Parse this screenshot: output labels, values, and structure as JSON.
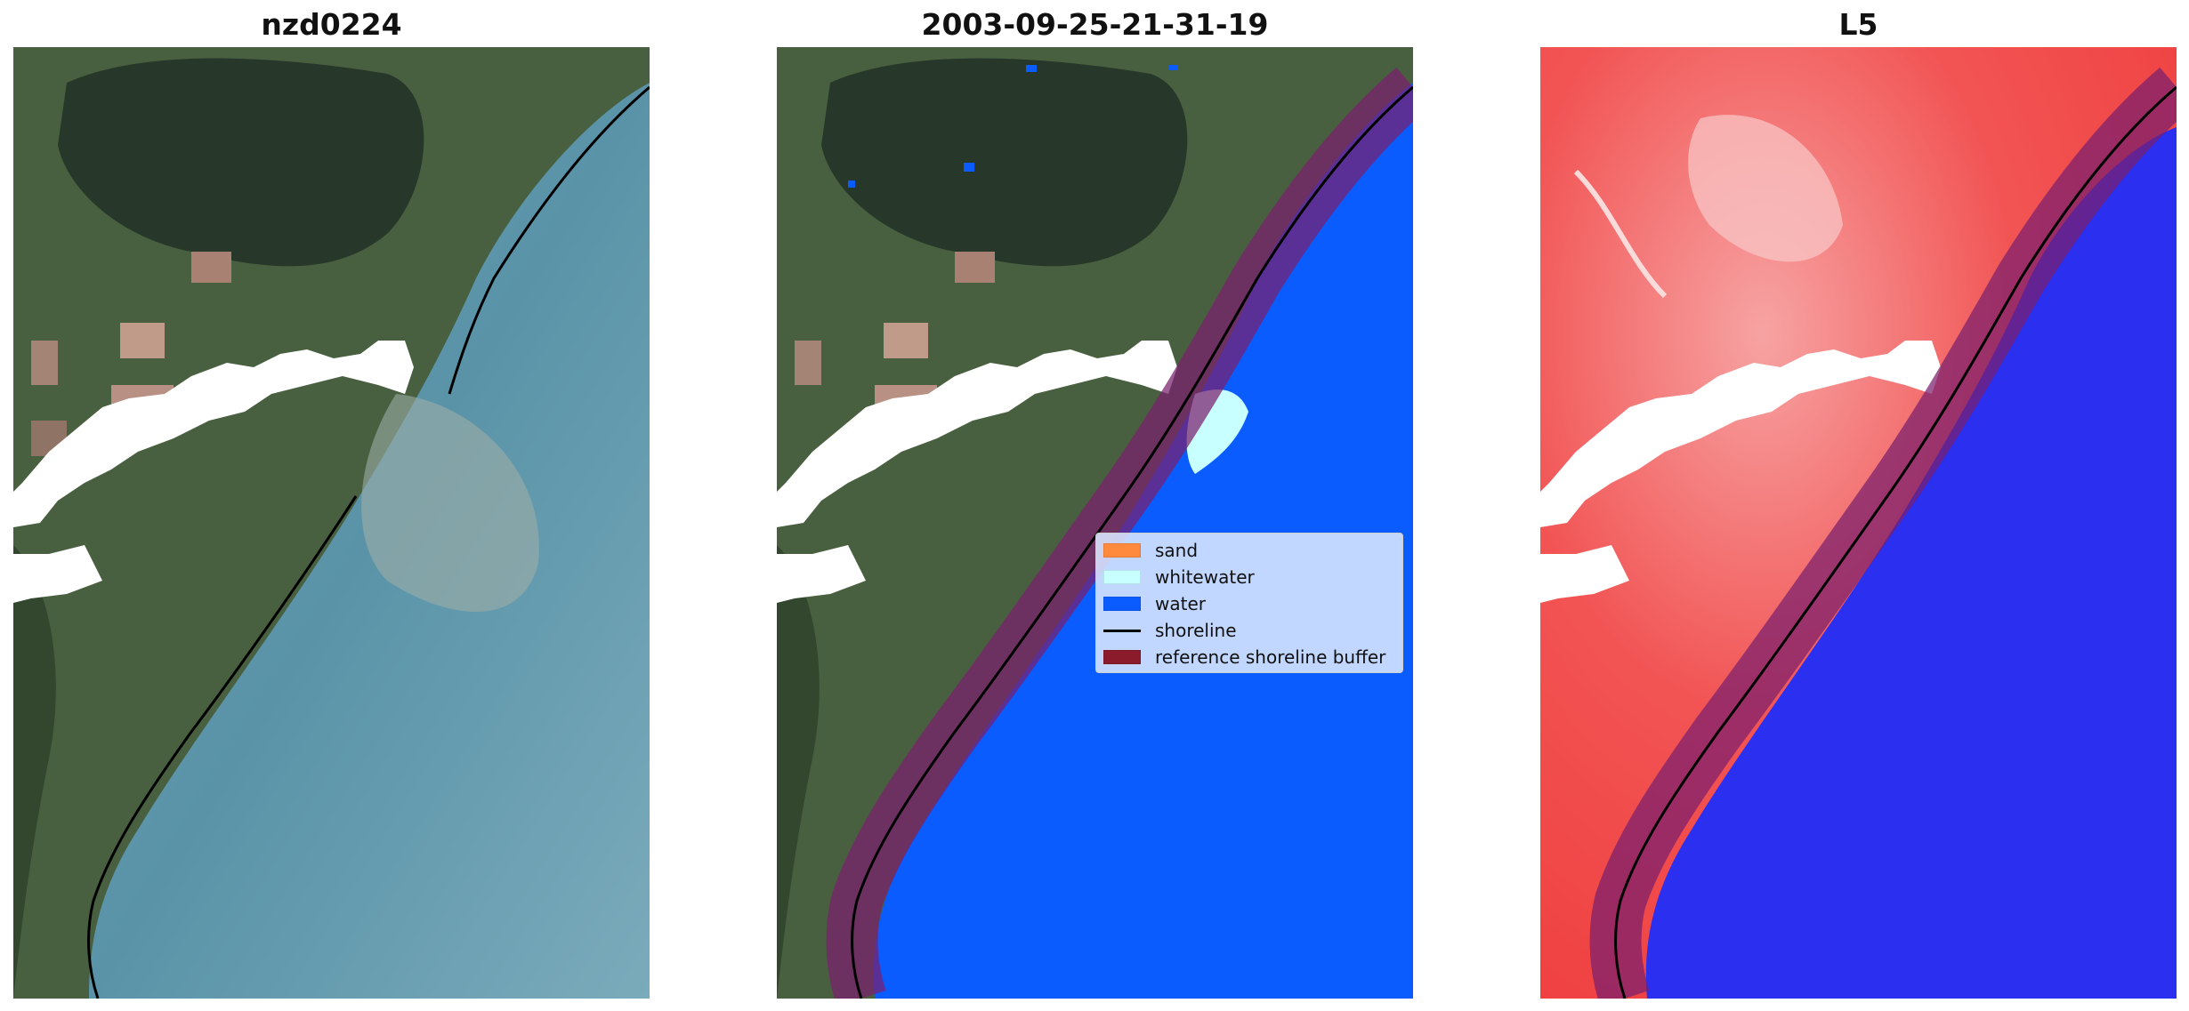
{
  "panels": [
    {
      "title": "nzd0224"
    },
    {
      "title": "2003-09-25-21-31-19"
    },
    {
      "title": "L5"
    }
  ],
  "legend": {
    "items": [
      {
        "label": "sand",
        "color": "#ff8a3d",
        "kind": "patch"
      },
      {
        "label": "whitewater",
        "color": "#c8ffff",
        "kind": "patch"
      },
      {
        "label": "water",
        "color": "#0a5cff",
        "kind": "patch"
      },
      {
        "label": "shoreline",
        "color": "#000000",
        "kind": "line"
      },
      {
        "label": "reference shoreline buffer",
        "color": "#8b1a2a",
        "kind": "patch"
      }
    ]
  },
  "colors": {
    "land": "#3f5a42",
    "ocean": "#5f93a6",
    "cloud": "#ffffff",
    "water_class": "#0a5cff",
    "mndwi_land": "#f24a4a",
    "mndwi_water": "#2a2ff0"
  }
}
